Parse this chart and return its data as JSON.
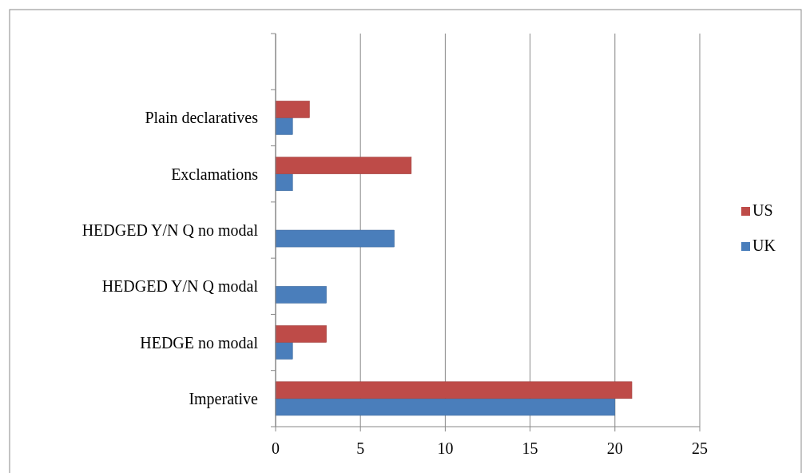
{
  "chart_data": {
    "type": "bar",
    "orientation": "horizontal",
    "categories": [
      null,
      "Plain declaratives",
      "Exclamations",
      "HEDGED Y/N Q no modal",
      "HEDGED Y/N Q modal",
      "HEDGE no modal",
      "Imperative"
    ],
    "series": [
      {
        "name": "UK",
        "color": "#4a7ebb",
        "values": [
          null,
          1,
          1,
          7,
          3,
          1,
          20
        ]
      },
      {
        "name": "US",
        "color": "#be4b48",
        "values": [
          null,
          2,
          8,
          0,
          0,
          3,
          21
        ]
      }
    ],
    "xlim": [
      0,
      25
    ],
    "xticks": [
      0,
      5,
      10,
      15,
      20,
      25
    ],
    "grid": "x",
    "legend": "right"
  }
}
